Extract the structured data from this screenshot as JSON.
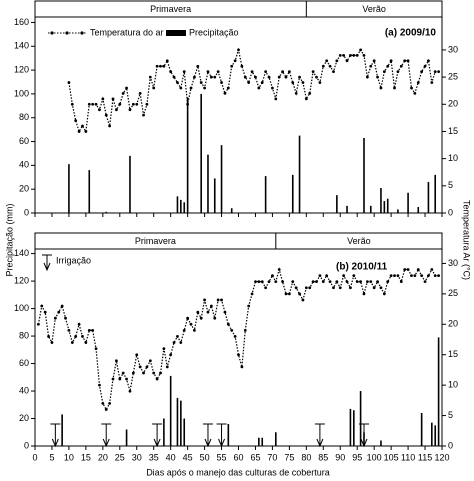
{
  "chart_data": [
    {
      "type": "bar",
      "panel_label": "(a) 2009/10",
      "ylabel": "Precipitação (mm)",
      "y2label": "Temperatura Ar (°C)",
      "seasons": [
        {
          "label": "Primavera",
          "from": 0,
          "to": 80
        },
        {
          "label": "Verão",
          "from": 80,
          "to": 120
        }
      ],
      "xlim": [
        0,
        120
      ],
      "ylim": [
        0,
        178
      ],
      "yticks": [
        0,
        20,
        40,
        60,
        80,
        100,
        120,
        140,
        160
      ],
      "y2lim": [
        0,
        39
      ],
      "y2ticks": [
        0,
        5,
        10,
        15,
        20,
        25,
        30
      ],
      "series": [
        {
          "name": "Temperatura do ar",
          "type": "line",
          "axis": "y2",
          "color": "#000000",
          "x": [
            10,
            11,
            12,
            13,
            14,
            15,
            16,
            17,
            18,
            19,
            20,
            21,
            22,
            23,
            24,
            25,
            26,
            27,
            28,
            29,
            30,
            31,
            32,
            33,
            34,
            35,
            36,
            37,
            38,
            39,
            40,
            41,
            42,
            43,
            44,
            45,
            46,
            47,
            48,
            49,
            50,
            51,
            52,
            53,
            54,
            55,
            56,
            57,
            58,
            59,
            60,
            61,
            62,
            63,
            64,
            65,
            66,
            67,
            68,
            69,
            70,
            71,
            72,
            73,
            74,
            75,
            76,
            77,
            78,
            79,
            80,
            81,
            82,
            83,
            84,
            85,
            86,
            87,
            88,
            89,
            90,
            91,
            92,
            93,
            94,
            95,
            96,
            97,
            98,
            99,
            100,
            101,
            102,
            103,
            104,
            105,
            106,
            107,
            108,
            109,
            110,
            111,
            112,
            113,
            114,
            115,
            116,
            117,
            118,
            119
          ],
          "values": [
            24,
            20,
            17,
            15,
            16,
            15,
            20,
            20,
            20,
            19,
            21,
            18,
            16,
            21,
            19,
            20,
            22,
            23,
            19,
            20,
            20,
            22,
            18,
            20,
            25,
            23,
            27,
            27,
            27,
            28,
            26,
            25,
            24,
            23,
            26,
            20,
            23,
            25,
            27,
            24,
            23,
            26,
            25,
            25,
            26,
            24,
            22,
            23,
            27,
            28,
            30,
            27,
            25,
            24,
            26,
            25,
            23,
            24,
            26,
            25,
            23,
            21,
            25,
            26,
            25,
            26,
            24,
            22,
            25,
            24,
            21,
            22,
            26,
            25,
            24,
            27,
            28,
            27,
            26,
            28,
            29,
            29,
            28,
            29,
            29,
            29,
            30,
            29,
            25,
            27,
            28,
            25,
            23,
            26,
            27,
            28,
            23,
            26,
            27,
            28,
            28,
            23,
            22,
            24,
            26,
            27,
            28,
            24,
            26,
            26
          ]
        },
        {
          "name": "Precipitação",
          "type": "bar",
          "color": "#000000",
          "x": [
            10,
            16,
            21,
            28,
            42,
            43,
            44,
            45,
            49,
            51,
            53,
            55,
            58,
            68,
            76,
            78,
            89,
            92,
            97,
            99,
            102,
            103,
            104,
            107,
            110,
            113,
            116,
            118
          ],
          "values": [
            41,
            36,
            1,
            48,
            14,
            11,
            9,
            97,
            100,
            49,
            29,
            57,
            4,
            31,
            32,
            65,
            15,
            6,
            63,
            6,
            21,
            10,
            12,
            3,
            17,
            5,
            26,
            32
          ]
        }
      ]
    },
    {
      "type": "bar",
      "panel_label": "(b) 2010/11",
      "xlabel": "Dias após o manejo das culturas de cobertura",
      "seasons": [
        {
          "label": "Primavera",
          "from": 0,
          "to": 71
        },
        {
          "label": "Verão",
          "from": 71,
          "to": 120
        }
      ],
      "xlim": [
        0,
        120
      ],
      "xticks": [
        0,
        5,
        10,
        15,
        20,
        25,
        30,
        35,
        40,
        45,
        50,
        55,
        60,
        65,
        70,
        75,
        80,
        85,
        90,
        95,
        100,
        105,
        110,
        115,
        120
      ],
      "ylim": [
        0,
        155
      ],
      "yticks": [
        0,
        20,
        40,
        60,
        80,
        100,
        120,
        140
      ],
      "y2lim": [
        0,
        35
      ],
      "y2ticks": [
        0,
        5,
        10,
        15,
        20,
        25,
        30
      ],
      "irrigation": {
        "name": "Irrigação",
        "x": [
          6,
          21,
          36,
          51,
          55,
          84,
          97
        ]
      },
      "series": [
        {
          "name": "Temperatura do ar",
          "type": "line",
          "axis": "y2",
          "color": "#000000",
          "x": [
            1,
            2,
            3,
            4,
            5,
            6,
            7,
            8,
            9,
            10,
            11,
            12,
            13,
            14,
            15,
            16,
            17,
            18,
            19,
            20,
            21,
            22,
            23,
            24,
            25,
            26,
            27,
            28,
            29,
            30,
            31,
            32,
            33,
            34,
            35,
            36,
            37,
            38,
            39,
            40,
            41,
            42,
            43,
            44,
            45,
            46,
            47,
            48,
            49,
            50,
            51,
            52,
            53,
            54,
            55,
            56,
            57,
            58,
            59,
            60,
            61,
            62,
            63,
            64,
            65,
            66,
            67,
            68,
            69,
            70,
            71,
            72,
            73,
            74,
            75,
            76,
            77,
            78,
            79,
            80,
            81,
            82,
            83,
            84,
            85,
            86,
            87,
            88,
            89,
            90,
            91,
            92,
            93,
            94,
            95,
            96,
            97,
            98,
            99,
            100,
            101,
            102,
            103,
            104,
            105,
            106,
            107,
            108,
            109,
            110,
            111,
            112,
            113,
            114,
            115,
            116,
            117,
            118,
            119
          ],
          "values": [
            20,
            23,
            22,
            18,
            17,
            21,
            22,
            23,
            21,
            19,
            17,
            18,
            20,
            18,
            17,
            19,
            19,
            16,
            10,
            7,
            6,
            7,
            11,
            14,
            11,
            12,
            11,
            9,
            12,
            15,
            13,
            12,
            13,
            14,
            12,
            11,
            12,
            16,
            13,
            15,
            17,
            18,
            17,
            19,
            21,
            20,
            19,
            22,
            21,
            24,
            22,
            23,
            21,
            24,
            24,
            22,
            20,
            19,
            18,
            15,
            13,
            19,
            23,
            25,
            27,
            27,
            27,
            26,
            27,
            28,
            27,
            29,
            27,
            25,
            25,
            27,
            26,
            25,
            24,
            26,
            26,
            27,
            27,
            28,
            27,
            28,
            27,
            26,
            27,
            26,
            28,
            27,
            26,
            28,
            27,
            27,
            25,
            27,
            27,
            26,
            27,
            26,
            25,
            27,
            28,
            28,
            28,
            27,
            29,
            29,
            28,
            28,
            29,
            28,
            27,
            28,
            29,
            28,
            28
          ]
        },
        {
          "name": "Precipitação",
          "type": "bar",
          "color": "#000000",
          "x": [
            8,
            27,
            38,
            40,
            42,
            43,
            44,
            57,
            66,
            67,
            71,
            93,
            94,
            96,
            97,
            102,
            114,
            117,
            118,
            119
          ],
          "values": [
            23,
            12,
            20,
            51,
            35,
            33,
            20,
            16,
            6,
            6,
            10,
            27,
            26,
            40,
            10,
            4,
            24,
            17,
            15,
            79
          ]
        }
      ]
    }
  ]
}
